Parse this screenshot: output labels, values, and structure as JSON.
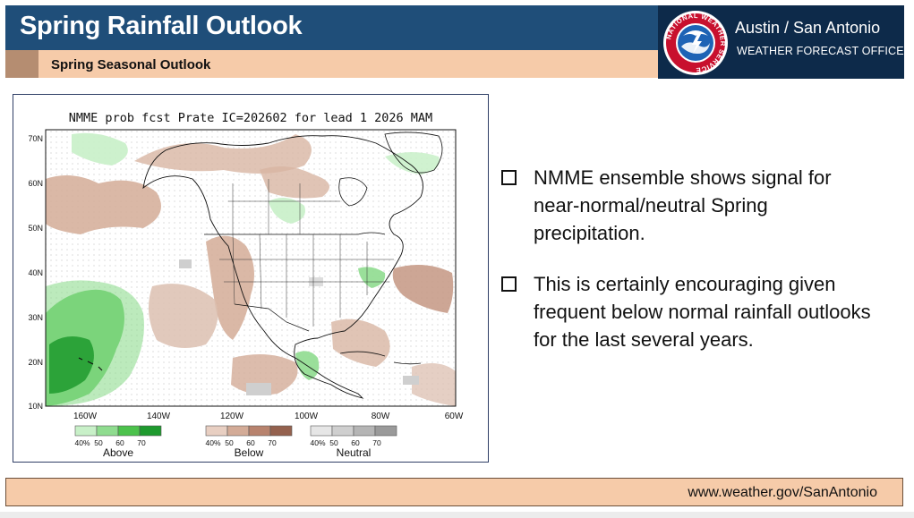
{
  "header": {
    "title": "Spring Rainfall Outlook",
    "subtitle": "Spring Seasonal Outlook"
  },
  "office": {
    "line1": "Austin / San Antonio",
    "line2": "WEATHER FORECAST OFFICE",
    "logo_text": "NATIONAL WEATHER SERVICE"
  },
  "map": {
    "title": "NMME prob fcst Prate IC=202602 for lead 1 2026 MAM",
    "lat_labels": [
      "70N",
      "60N",
      "50N",
      "40N",
      "30N",
      "20N",
      "10N"
    ],
    "lon_labels": [
      "160W",
      "140W",
      "120W",
      "100W",
      "80W",
      "60W"
    ],
    "legend": [
      {
        "name": "Above",
        "ticks": [
          "40%",
          "50",
          "60",
          "70"
        ],
        "colors": [
          "#c8f0c8",
          "#8fdc8f",
          "#4cc24c",
          "#1e9a2e"
        ]
      },
      {
        "name": "Below",
        "ticks": [
          "40%",
          "50",
          "60",
          "70"
        ],
        "colors": [
          "#e8cfc2",
          "#d3ab97",
          "#b8836e",
          "#94614e"
        ]
      },
      {
        "name": "Neutral",
        "ticks": [
          "40%",
          "50",
          "60",
          "70"
        ],
        "colors": [
          "#e6e6e6",
          "#cfcfcf",
          "#b5b5b5",
          "#9a9a9a"
        ]
      }
    ]
  },
  "bullets": [
    "NMME ensemble shows signal for near-normal/neutral Spring precipitation.",
    "This is certainly encouraging given frequent below normal rainfall outlooks for the last several years."
  ],
  "footer": {
    "url": "www.weather.gov/SanAntonio"
  }
}
